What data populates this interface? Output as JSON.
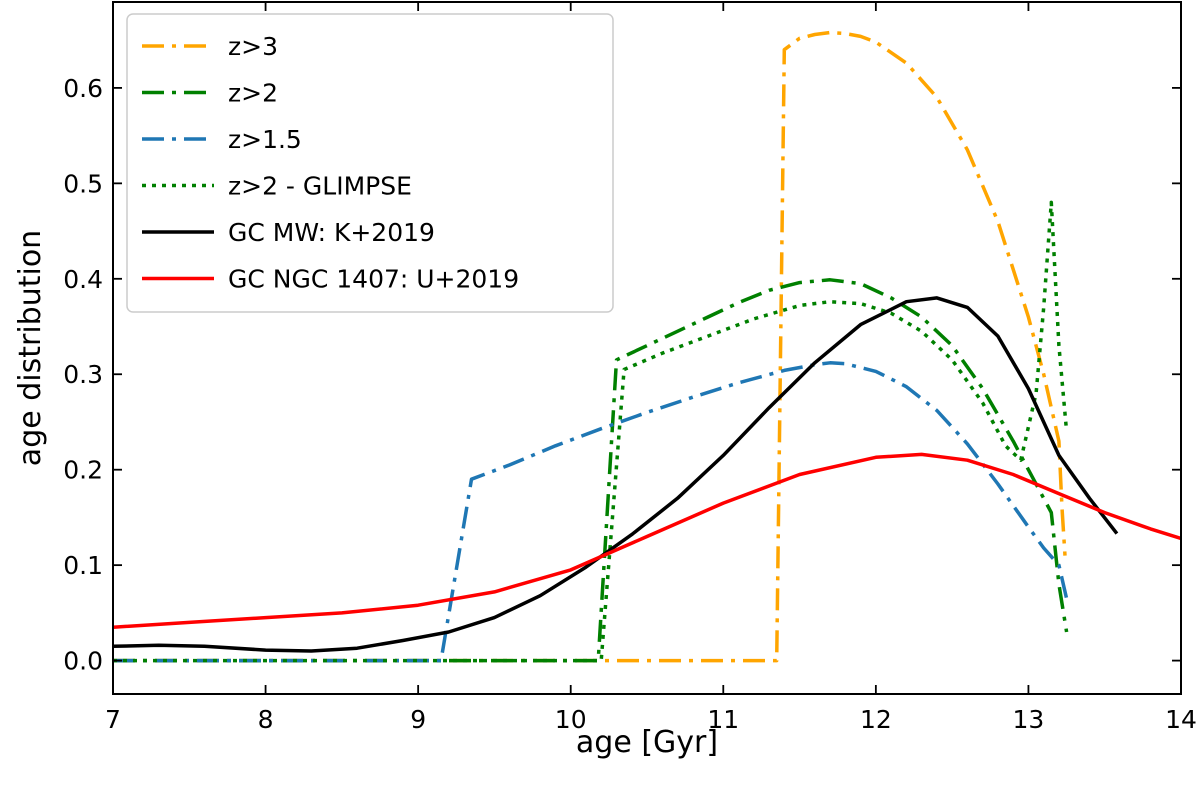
{
  "chart_data": {
    "type": "line",
    "title": "",
    "xlabel": "age [Gyr]",
    "ylabel": "age distribution",
    "xlim": [
      7,
      14
    ],
    "ylim": [
      -0.035,
      0.69
    ],
    "xticks": [
      7,
      8,
      9,
      10,
      11,
      12,
      13,
      14
    ],
    "yticks": [
      0.0,
      0.1,
      0.2,
      0.3,
      0.4,
      0.5,
      0.6
    ],
    "xtick_labels": [
      "7",
      "8",
      "9",
      "10",
      "11",
      "12",
      "13",
      "14"
    ],
    "ytick_labels": [
      "0.0",
      "0.1",
      "0.2",
      "0.3",
      "0.4",
      "0.5",
      "0.6"
    ],
    "grid": false,
    "legend_position": "upper-left",
    "series": [
      {
        "name": "z>3",
        "color": "#ffa500",
        "dash": "dashdot",
        "width": 3.5,
        "x": [
          7.0,
          11.35,
          11.4,
          11.5,
          11.6,
          11.7,
          11.8,
          11.9,
          12.0,
          12.2,
          12.4,
          12.6,
          12.8,
          13.0,
          13.1,
          13.2,
          13.22,
          13.24
        ],
        "y": [
          0.0,
          0.0,
          0.64,
          0.652,
          0.656,
          0.658,
          0.657,
          0.654,
          0.648,
          0.626,
          0.59,
          0.535,
          0.46,
          0.36,
          0.3,
          0.23,
          0.16,
          0.11
        ]
      },
      {
        "name": "z>2",
        "color": "#008000",
        "dash": "dashdot",
        "width": 3.5,
        "x": [
          7.0,
          10.18,
          10.3,
          10.5,
          10.7,
          10.9,
          11.1,
          11.3,
          11.5,
          11.7,
          11.9,
          12.1,
          12.3,
          12.5,
          12.7,
          12.9,
          13.0,
          13.1,
          13.15,
          13.2,
          13.25
        ],
        "y": [
          0.0,
          0.0,
          0.315,
          0.33,
          0.345,
          0.36,
          0.375,
          0.388,
          0.396,
          0.399,
          0.395,
          0.38,
          0.36,
          0.33,
          0.285,
          0.23,
          0.2,
          0.17,
          0.155,
          0.08,
          0.03
        ]
      },
      {
        "name": "z>1.5",
        "color": "#1f77b4",
        "dash": "dashdot",
        "width": 3.5,
        "x": [
          7.0,
          9.15,
          9.35,
          9.6,
          9.9,
          10.2,
          10.5,
          10.8,
          11.1,
          11.4,
          11.6,
          11.7,
          11.8,
          12.0,
          12.2,
          12.4,
          12.6,
          12.8,
          13.0,
          13.1,
          13.2,
          13.25
        ],
        "y": [
          0.0,
          0.0,
          0.19,
          0.205,
          0.225,
          0.243,
          0.26,
          0.276,
          0.291,
          0.304,
          0.31,
          0.312,
          0.311,
          0.303,
          0.287,
          0.262,
          0.227,
          0.185,
          0.14,
          0.118,
          0.1,
          0.065
        ]
      },
      {
        "name": "z>2 - GLIMPSE",
        "color": "#008000",
        "dash": "dotted",
        "width": 3.5,
        "x": [
          7.0,
          10.2,
          10.35,
          10.6,
          10.9,
          11.2,
          11.5,
          11.7,
          11.9,
          12.1,
          12.3,
          12.5,
          12.7,
          12.85,
          12.95,
          13.05,
          13.1,
          13.15,
          13.2,
          13.25
        ],
        "y": [
          0.0,
          0.0,
          0.305,
          0.322,
          0.34,
          0.358,
          0.372,
          0.376,
          0.374,
          0.364,
          0.345,
          0.315,
          0.27,
          0.225,
          0.21,
          0.28,
          0.37,
          0.48,
          0.33,
          0.24
        ]
      },
      {
        "name": "GC MW: K+2019",
        "color": "#000000",
        "dash": "solid",
        "width": 3.5,
        "x": [
          7.0,
          7.3,
          7.6,
          8.0,
          8.3,
          8.6,
          8.9,
          9.2,
          9.5,
          9.8,
          10.1,
          10.4,
          10.7,
          11.0,
          11.3,
          11.6,
          11.9,
          12.2,
          12.4,
          12.6,
          12.8,
          13.0,
          13.2,
          13.4,
          13.58
        ],
        "y": [
          0.015,
          0.016,
          0.015,
          0.011,
          0.01,
          0.013,
          0.021,
          0.03,
          0.045,
          0.068,
          0.098,
          0.132,
          0.17,
          0.215,
          0.265,
          0.312,
          0.352,
          0.376,
          0.38,
          0.37,
          0.34,
          0.285,
          0.215,
          0.17,
          0.133
        ]
      },
      {
        "name": "GC NGC 1407: U+2019",
        "color": "#ff0000",
        "dash": "solid",
        "width": 3.5,
        "x": [
          7.0,
          7.5,
          8.0,
          8.5,
          9.0,
          9.5,
          10.0,
          10.5,
          11.0,
          11.5,
          12.0,
          12.3,
          12.6,
          12.9,
          13.2,
          13.5,
          13.8,
          14.0
        ],
        "y": [
          0.035,
          0.04,
          0.045,
          0.05,
          0.058,
          0.072,
          0.095,
          0.13,
          0.165,
          0.195,
          0.213,
          0.216,
          0.21,
          0.195,
          0.175,
          0.155,
          0.138,
          0.128
        ]
      }
    ]
  }
}
